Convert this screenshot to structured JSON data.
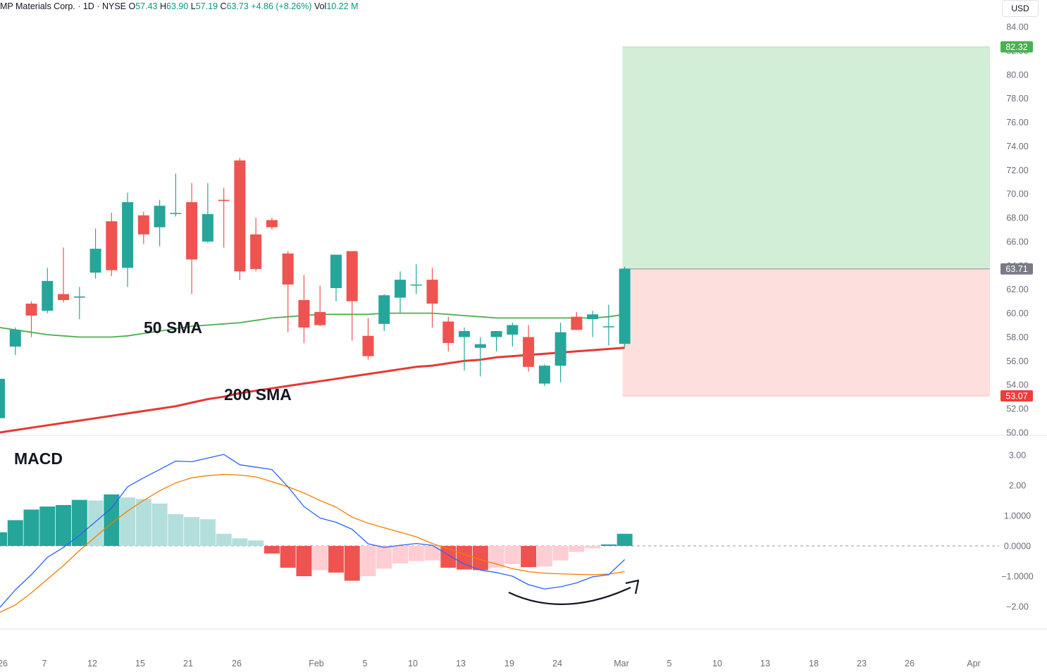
{
  "header": {
    "symbol": "MP Materials Corp.",
    "sep1": " · ",
    "interval": "1D",
    "sep2": " · ",
    "exchange": "NYSE",
    "o_label": "O",
    "o_value": "57.43",
    "h_label": "H",
    "h_value": "63.90",
    "l_label": "L",
    "l_value": "57.19",
    "c_label": "C",
    "c_value": "63.73",
    "change": "+4.86 (+8.26%)",
    "vol_label": "Vol",
    "vol_value": "10.22 M"
  },
  "currency": "USD",
  "colors": {
    "up": "#26a69a",
    "down": "#ef5350",
    "sma50": "#4caf50",
    "sma200": "#e53935",
    "macd": "#2962ff",
    "signal": "#f57c00",
    "hist_up_strong": "#26a69a",
    "hist_up_weak": "#b2dfdb",
    "hist_down_strong": "#ef5350",
    "hist_down_weak": "#ffcdd2",
    "target_zone": "#d3eed6",
    "stop_zone": "#fde0dd",
    "target_tag": "#4caf50",
    "stop_tag": "#ef3c3c",
    "price_tag": "#787b86"
  },
  "chart_data": [
    {
      "type": "candlestick",
      "ylim": [
        50,
        85
      ],
      "y_ticks": [
        "84.00",
        "82.00",
        "80.00",
        "78.00",
        "76.00",
        "74.00",
        "72.00",
        "70.00",
        "68.00",
        "66.00",
        "64.00",
        "62.00",
        "60.00",
        "58.00",
        "56.00",
        "54.00",
        "52.00",
        "50.00"
      ],
      "x_ticks": [
        "26",
        "7",
        "12",
        "15",
        "21",
        "26",
        "Feb",
        "5",
        "10",
        "13",
        "19",
        "24",
        "Mar",
        "5",
        "10",
        "13",
        "18",
        "23",
        "26",
        "Apr"
      ],
      "annotations": [
        "50 SMA",
        "200 SMA"
      ],
      "price_labels": {
        "target": "82.32",
        "current": "63.71",
        "stop": "53.07"
      },
      "candles": [
        {
          "o": 51.2,
          "h": 54.5,
          "l": 51.2,
          "c": 54.5
        },
        {
          "o": 57.2,
          "h": 58.8,
          "l": 56.5,
          "c": 58.6
        },
        {
          "o": 60.8,
          "h": 61.0,
          "l": 58.0,
          "c": 59.8
        },
        {
          "o": 60.2,
          "h": 63.8,
          "l": 60.0,
          "c": 62.7
        },
        {
          "o": 61.6,
          "h": 65.5,
          "l": 60.9,
          "c": 61.1
        },
        {
          "o": 61.3,
          "h": 62.2,
          "l": 59.5,
          "c": 61.4
        },
        {
          "o": 63.4,
          "h": 67.1,
          "l": 62.9,
          "c": 65.4
        },
        {
          "o": 67.7,
          "h": 68.4,
          "l": 63.1,
          "c": 63.6
        },
        {
          "o": 63.8,
          "h": 70.1,
          "l": 62.2,
          "c": 69.3
        },
        {
          "o": 68.2,
          "h": 68.5,
          "l": 65.8,
          "c": 66.6
        },
        {
          "o": 67.2,
          "h": 69.5,
          "l": 65.6,
          "c": 69.0
        },
        {
          "o": 68.4,
          "h": 71.7,
          "l": 68.1,
          "c": 68.4
        },
        {
          "o": 69.3,
          "h": 70.9,
          "l": 61.6,
          "c": 64.5
        },
        {
          "o": 66.0,
          "h": 70.9,
          "l": 65.9,
          "c": 68.3
        },
        {
          "o": 69.5,
          "h": 70.5,
          "l": 65.5,
          "c": 69.4
        },
        {
          "o": 72.8,
          "h": 73.0,
          "l": 62.8,
          "c": 63.5
        },
        {
          "o": 66.6,
          "h": 68.0,
          "l": 63.5,
          "c": 63.7
        },
        {
          "o": 67.8,
          "h": 68.0,
          "l": 67.0,
          "c": 67.2
        },
        {
          "o": 65.0,
          "h": 65.2,
          "l": 58.4,
          "c": 62.4
        },
        {
          "o": 61.1,
          "h": 63.2,
          "l": 57.5,
          "c": 58.8
        },
        {
          "o": 60.1,
          "h": 62.3,
          "l": 58.9,
          "c": 59.0
        },
        {
          "o": 62.1,
          "h": 64.9,
          "l": 61.0,
          "c": 64.9
        },
        {
          "o": 65.2,
          "h": 65.2,
          "l": 57.7,
          "c": 61.0
        },
        {
          "o": 58.1,
          "h": 59.6,
          "l": 56.1,
          "c": 56.4
        },
        {
          "o": 59.1,
          "h": 61.6,
          "l": 58.5,
          "c": 61.5
        },
        {
          "o": 61.3,
          "h": 63.5,
          "l": 60.0,
          "c": 62.8
        },
        {
          "o": 62.4,
          "h": 64.1,
          "l": 61.6,
          "c": 62.4
        },
        {
          "o": 62.8,
          "h": 63.8,
          "l": 58.8,
          "c": 60.8
        },
        {
          "o": 59.3,
          "h": 59.7,
          "l": 56.8,
          "c": 57.5
        },
        {
          "o": 58.0,
          "h": 58.8,
          "l": 55.2,
          "c": 58.5
        },
        {
          "o": 57.1,
          "h": 58.0,
          "l": 54.7,
          "c": 57.4
        },
        {
          "o": 58.0,
          "h": 58.5,
          "l": 56.8,
          "c": 58.5
        },
        {
          "o": 58.2,
          "h": 59.2,
          "l": 57.2,
          "c": 59.0
        },
        {
          "o": 58.0,
          "h": 59.0,
          "l": 55.1,
          "c": 55.5
        },
        {
          "o": 54.1,
          "h": 55.7,
          "l": 53.9,
          "c": 55.6
        },
        {
          "o": 55.6,
          "h": 59.2,
          "l": 54.2,
          "c": 58.4
        },
        {
          "o": 59.7,
          "h": 60.1,
          "l": 58.6,
          "c": 58.6
        },
        {
          "o": 59.5,
          "h": 60.2,
          "l": 58.0,
          "c": 59.9
        },
        {
          "o": 58.9,
          "h": 60.7,
          "l": 57.3,
          "c": 58.9
        },
        {
          "o": 57.43,
          "h": 63.9,
          "l": 57.19,
          "c": 63.73
        }
      ],
      "sma50": [
        58.8,
        58.6,
        58.4,
        58.2,
        58.1,
        58.0,
        58.0,
        58.0,
        58.1,
        58.3,
        58.5,
        58.7,
        58.9,
        59.0,
        59.1,
        59.2,
        59.4,
        59.6,
        59.7,
        59.8,
        59.9,
        59.9,
        59.9,
        59.9,
        60.0,
        60.0,
        60.0,
        60.0,
        59.9,
        59.8,
        59.7,
        59.6,
        59.6,
        59.6,
        59.6,
        59.6,
        59.6,
        59.6,
        59.7,
        59.9
      ],
      "sma200": [
        50.0,
        50.2,
        50.4,
        50.6,
        50.8,
        51.0,
        51.2,
        51.4,
        51.6,
        51.8,
        52.0,
        52.2,
        52.5,
        52.8,
        53.0,
        53.3,
        53.5,
        53.7,
        53.9,
        54.1,
        54.3,
        54.5,
        54.7,
        54.9,
        55.1,
        55.3,
        55.5,
        55.6,
        55.8,
        56.0,
        56.1,
        56.3,
        56.4,
        56.5,
        56.6,
        56.7,
        56.8,
        56.9,
        57.0,
        57.1
      ]
    },
    {
      "type": "macd",
      "title": "MACD",
      "ylim": [
        -2.5,
        3.3
      ],
      "y_ticks": [
        "3.00",
        "2.00",
        "1.0000",
        "0.0000",
        "−1.0000",
        "−2.00"
      ],
      "histogram": [
        0.45,
        0.85,
        1.2,
        1.3,
        1.35,
        1.52,
        1.5,
        1.7,
        1.6,
        1.55,
        1.4,
        1.05,
        0.95,
        0.88,
        0.4,
        0.25,
        0.18,
        -0.25,
        -0.72,
        -1.0,
        -0.8,
        -0.88,
        -1.15,
        -1.0,
        -0.75,
        -0.58,
        -0.5,
        -0.48,
        -0.72,
        -0.78,
        -0.8,
        -0.72,
        -0.6,
        -0.7,
        -0.68,
        -0.48,
        -0.2,
        -0.08,
        0.05,
        0.4
      ],
      "macd": [
        -2.05,
        -1.45,
        -0.95,
        -0.38,
        -0.05,
        0.35,
        0.8,
        1.25,
        1.95,
        2.25,
        2.52,
        2.8,
        2.78,
        2.9,
        3.02,
        2.68,
        2.6,
        2.52,
        1.95,
        1.3,
        0.92,
        0.78,
        0.55,
        0.07,
        -0.05,
        0.02,
        0.08,
        0.02,
        -0.3,
        -0.6,
        -0.8,
        -0.88,
        -1.0,
        -1.28,
        -1.42,
        -1.35,
        -1.22,
        -1.02,
        -0.95,
        -0.45
      ],
      "signal": [
        -2.2,
        -1.95,
        -1.55,
        -1.1,
        -0.65,
        -0.15,
        0.3,
        0.75,
        1.15,
        1.5,
        1.82,
        2.08,
        2.25,
        2.32,
        2.36,
        2.34,
        2.28,
        2.12,
        1.95,
        1.75,
        1.5,
        1.28,
        0.95,
        0.75,
        0.6,
        0.45,
        0.3,
        0.08,
        -0.1,
        -0.28,
        -0.45,
        -0.6,
        -0.75,
        -0.85,
        -0.9,
        -0.92,
        -0.94,
        -0.95,
        -0.93,
        -0.85
      ]
    }
  ]
}
